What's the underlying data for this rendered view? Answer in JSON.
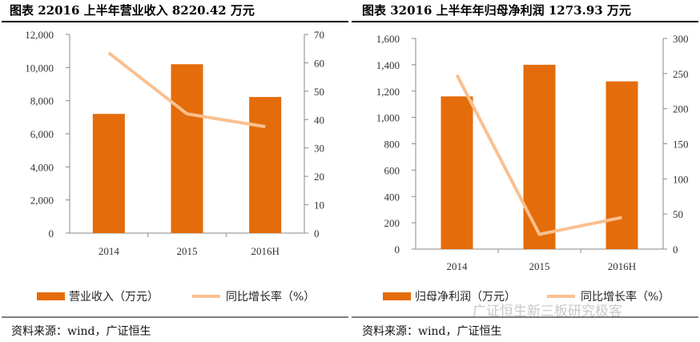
{
  "colors": {
    "bar": "#E46C0A",
    "line": "#FAC090",
    "axis": "#888888"
  },
  "watermark": "广证恒生新三板研究极客",
  "chart_data": [
    {
      "type": "bar",
      "title": "图表 22016 上半年营业收入 8220.42 万元",
      "categories": [
        "2014",
        "2015",
        "2016H"
      ],
      "series": [
        {
          "name": "营业收入（万元）",
          "type": "bar",
          "axis": "left",
          "values": [
            7200,
            10200,
            8220
          ]
        },
        {
          "name": "同比增长率（%）",
          "type": "line",
          "axis": "right",
          "values": [
            63.5,
            42,
            37.5
          ]
        }
      ],
      "ylim_left": [
        0,
        12000
      ],
      "yticks_left": [
        "0",
        "2,000",
        "4,000",
        "6,000",
        "8,000",
        "10,000",
        "12,000"
      ],
      "ylim_right": [
        0,
        70
      ],
      "yticks_right": [
        "0",
        "10",
        "20",
        "30",
        "40",
        "50",
        "60",
        "70"
      ],
      "grid": false,
      "legend": "bottom",
      "source": "资料来源：wind，广证恒生"
    },
    {
      "type": "bar",
      "title": "图表 32016 上半年年归母净利润 1273.93 万元",
      "categories": [
        "2014",
        "2015",
        "2016H"
      ],
      "series": [
        {
          "name": "归母净利润（万元）",
          "type": "bar",
          "axis": "left",
          "values": [
            1160,
            1400,
            1274
          ]
        },
        {
          "name": "同比增长率（%）",
          "type": "line",
          "axis": "right",
          "values": [
            248,
            21,
            45
          ]
        }
      ],
      "ylim_left": [
        0,
        1600
      ],
      "yticks_left": [
        "0",
        "200",
        "400",
        "600",
        "800",
        "1,000",
        "1,200",
        "1,400",
        "1,600"
      ],
      "ylim_right": [
        0,
        300
      ],
      "yticks_right": [
        "0",
        "50",
        "100",
        "150",
        "200",
        "250",
        "300"
      ],
      "grid": false,
      "legend": "bottom",
      "source": "资料来源：wind，广证恒生"
    }
  ]
}
